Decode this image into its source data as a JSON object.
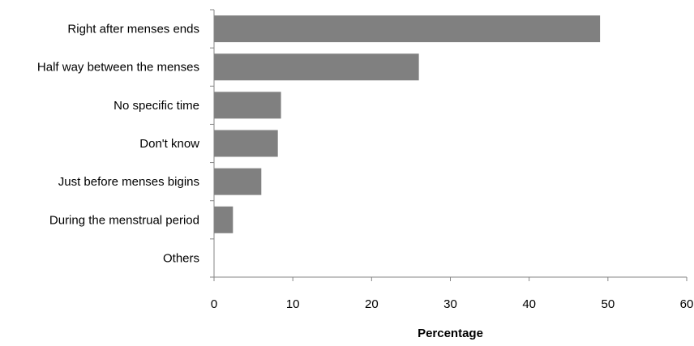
{
  "chart_data": {
    "type": "bar",
    "orientation": "horizontal",
    "categories": [
      "Right after menses ends",
      "Half way between the menses",
      "No specific time",
      "Don't know",
      "Just before menses bigins",
      "During the menstrual period",
      "Others"
    ],
    "values": [
      49,
      26,
      8.5,
      8.1,
      6,
      2.4,
      0
    ],
    "xlabel": "Percentage",
    "ylabel": "",
    "xlim": [
      0,
      60
    ],
    "xticks": [
      "0",
      "10",
      "20",
      "30",
      "40",
      "50",
      "60"
    ],
    "grid": false,
    "bar_color": "#808080",
    "axis_color": "#868686"
  }
}
